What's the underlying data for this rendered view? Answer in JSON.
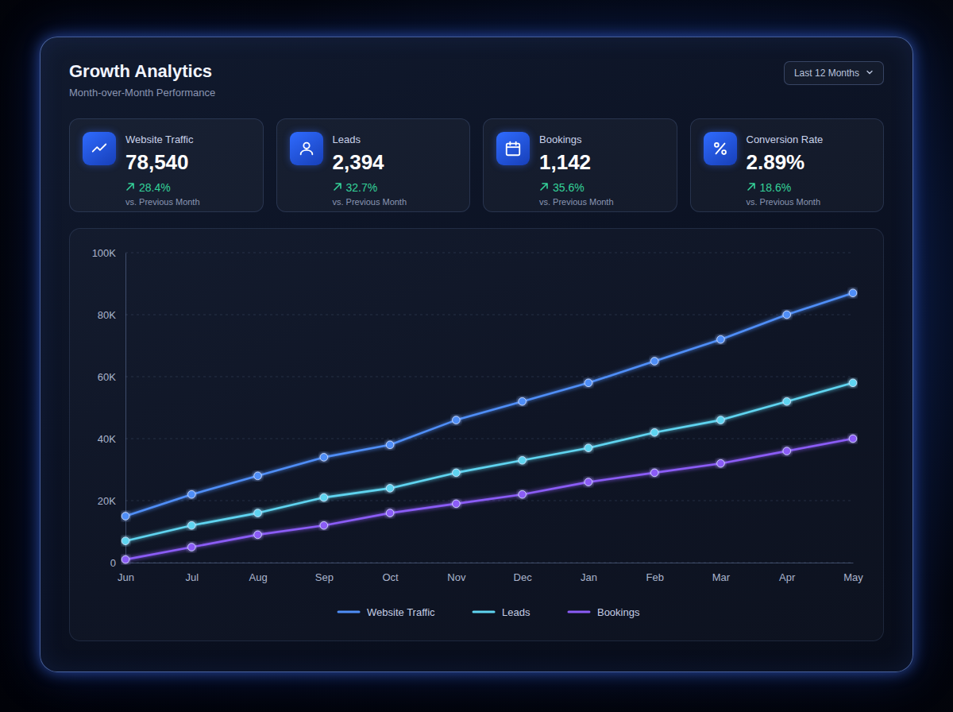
{
  "header": {
    "title": "Growth Analytics",
    "subtitle": "Month-over-Month Performance",
    "range_selector": "Last 12 Months"
  },
  "kpis": [
    {
      "label": "Website Traffic",
      "value": "78,540",
      "change": "28.4%",
      "note": "vs. Previous Month"
    },
    {
      "label": "Leads",
      "value": "2,394",
      "change": "32.7%",
      "note": "vs. Previous Month"
    },
    {
      "label": "Bookings",
      "value": "1,142",
      "change": "35.6%",
      "note": "vs. Previous Month"
    },
    {
      "label": "Conversion Rate",
      "value": "2.89%",
      "change": "18.6%",
      "note": "vs. Previous Month"
    }
  ],
  "chart_data": {
    "type": "line",
    "categories": [
      "Jun",
      "Jul",
      "Aug",
      "Sep",
      "Oct",
      "Nov",
      "Dec",
      "Jan",
      "Feb",
      "Mar",
      "Apr",
      "May"
    ],
    "series": [
      {
        "name": "Website Traffic",
        "color": "#4f8ef7",
        "marker": "circle",
        "values": [
          15000,
          22000,
          28000,
          34000,
          38000,
          46000,
          52000,
          58000,
          65000,
          72000,
          80000,
          87000
        ]
      },
      {
        "name": "Leads",
        "color": "#5fd4f0",
        "marker": "circle",
        "values": [
          7000,
          12000,
          16000,
          21000,
          24000,
          29000,
          33000,
          37000,
          42000,
          46000,
          52000,
          58000
        ]
      },
      {
        "name": "Bookings",
        "color": "#8b5cf6",
        "marker": "circle",
        "values": [
          1000,
          5000,
          9000,
          12000,
          16000,
          19000,
          22000,
          26000,
          29000,
          32000,
          36000,
          40000
        ]
      }
    ],
    "ylim": [
      0,
      100000
    ],
    "yticks": [
      0,
      {
        "value": 20000,
        "label": "20K"
      },
      {
        "value": 40000,
        "label": "40K"
      },
      {
        "value": 60000,
        "label": "60K"
      },
      {
        "value": 80000,
        "label": "80K"
      },
      {
        "value": 100000,
        "label": "100K"
      }
    ],
    "grid": true,
    "legend": "bottom"
  }
}
